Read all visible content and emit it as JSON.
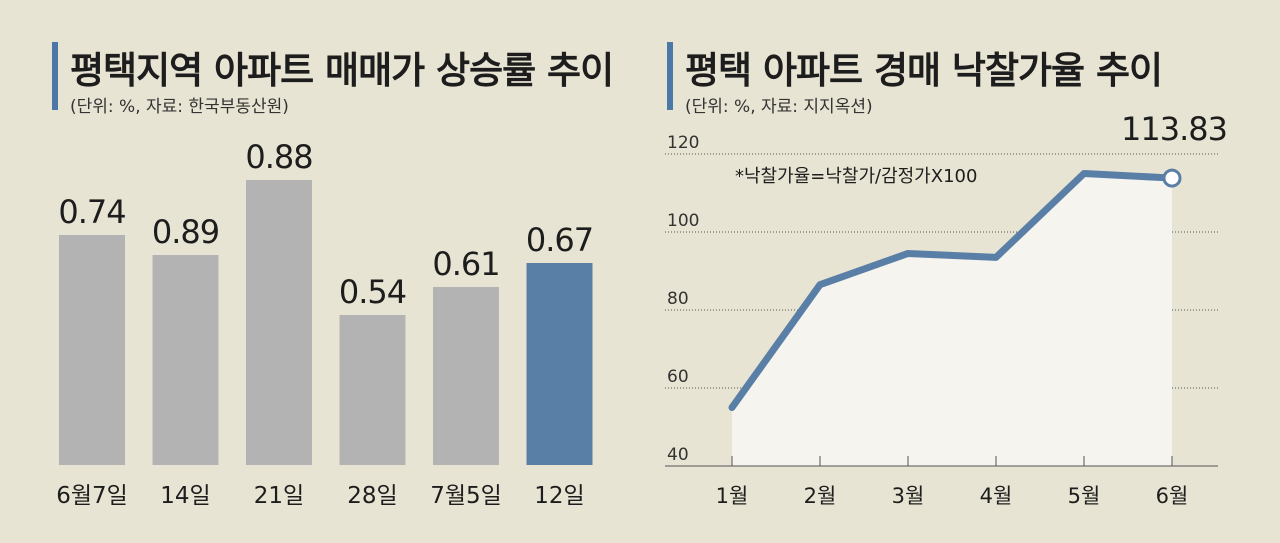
{
  "colors": {
    "background": "#e8e4d3",
    "bar_default": "#b3b3b3",
    "bar_highlight": "#5a7fa6",
    "line": "#5a7fa6",
    "accent_bar": "#4b78a6"
  },
  "left": {
    "title": "평택지역 아파트 매매가 상승률 추이",
    "subtitle": "(단위: %, 자료: 한국부동산원)"
  },
  "right": {
    "title": "평택 아파트 경매 낙찰가율 추이",
    "subtitle": "(단위: %, 자료: 지지옥션)",
    "note": "*낙찰가율=낙찰가/감정가X100",
    "end_label": "113.83"
  },
  "chart_data": [
    {
      "type": "bar",
      "title": "평택지역 아파트 매매가 상승률 추이",
      "categories": [
        "6월7일",
        "14일",
        "21일",
        "28일",
        "7월5일",
        "12일"
      ],
      "values": [
        0.74,
        0.89,
        0.88,
        0.54,
        0.61,
        0.67
      ],
      "value_labels": [
        "0.74",
        "0.89",
        "0.88",
        "0.54",
        "0.61",
        "0.67"
      ],
      "highlight_index": 5,
      "xlabel": "",
      "ylabel": "",
      "axis_visible": false
    },
    {
      "type": "area",
      "title": "평택 아파트 경매 낙찰가율 추이",
      "x": [
        "1월",
        "2월",
        "3월",
        "4월",
        "5월",
        "6월"
      ],
      "values": [
        55,
        86.5,
        94.5,
        93.5,
        115,
        113.83
      ],
      "yticks": [
        40,
        60,
        80,
        100,
        120
      ],
      "ylim": [
        40,
        120
      ],
      "grid": true,
      "last_point_label": "113.83",
      "xlabel": "",
      "ylabel": ""
    }
  ]
}
